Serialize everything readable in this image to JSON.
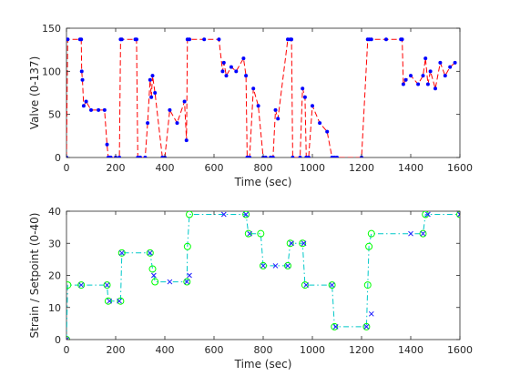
{
  "figure": {
    "background": "#ffffff"
  },
  "chart_data": [
    {
      "type": "line",
      "xlabel": "Time (sec)",
      "ylabel": "Valve (0-137)",
      "xlim": [
        0,
        1600
      ],
      "ylim": [
        0,
        150
      ],
      "xticks": [
        0,
        200,
        400,
        600,
        800,
        1000,
        1200,
        1400,
        1600
      ],
      "yticks": [
        0,
        50,
        100,
        150
      ],
      "grid": false,
      "series": [
        {
          "style": "red-dashed-line-with-blue-dot-markers",
          "line_color": "#ff0000",
          "marker_color": "#0000ff",
          "x": [
            0,
            5,
            55,
            60,
            62,
            65,
            70,
            80,
            100,
            130,
            155,
            165,
            170,
            175,
            180,
            200,
            215,
            220,
            225,
            280,
            285,
            290,
            300,
            320,
            330,
            340,
            345,
            350,
            360,
            390,
            400,
            420,
            450,
            480,
            488,
            492,
            500,
            560,
            620,
            635,
            640,
            650,
            670,
            690,
            720,
            730,
            735,
            740,
            745,
            760,
            780,
            800,
            810,
            830,
            840,
            850,
            860,
            900,
            910,
            915,
            920,
            950,
            960,
            970,
            975,
            985,
            1000,
            1030,
            1060,
            1080,
            1090,
            1100,
            1200,
            1225,
            1232,
            1240,
            1300,
            1360,
            1365,
            1370,
            1380,
            1400,
            1430,
            1450,
            1460,
            1470,
            1480,
            1500,
            1520,
            1540,
            1560,
            1580
          ],
          "y": [
            0,
            137,
            137,
            137,
            100,
            90,
            60,
            65,
            55,
            55,
            55,
            15,
            0,
            0,
            0,
            0,
            0,
            137,
            137,
            137,
            137,
            0,
            0,
            0,
            40,
            90,
            70,
            95,
            75,
            0,
            0,
            55,
            40,
            65,
            20,
            137,
            137,
            137,
            137,
            100,
            110,
            95,
            105,
            100,
            115,
            95,
            0,
            0,
            0,
            80,
            60,
            0,
            0,
            0,
            0,
            55,
            45,
            137,
            137,
            137,
            0,
            0,
            80,
            70,
            0,
            0,
            60,
            40,
            30,
            0,
            0,
            0,
            0,
            137,
            137,
            137,
            137,
            137,
            137,
            85,
            90,
            95,
            85,
            95,
            115,
            85,
            100,
            80,
            110,
            95,
            105,
            110
          ]
        }
      ]
    },
    {
      "type": "line",
      "xlabel": "Time (sec)",
      "ylabel": "Strain / Setpoint (0-40)",
      "xlim": [
        0,
        1600
      ],
      "ylim": [
        0,
        40
      ],
      "xticks": [
        0,
        200,
        400,
        600,
        800,
        1000,
        1200,
        1400,
        1600
      ],
      "yticks": [
        0,
        10,
        20,
        30,
        40
      ],
      "grid": false,
      "series": [
        {
          "style": "cyan-dash-dot-line-with-green-circle-markers",
          "line_color": "#00c8c8",
          "marker_color": "#00ff00",
          "x": [
            0,
            5,
            60,
            165,
            170,
            220,
            225,
            340,
            350,
            360,
            490,
            492,
            500,
            730,
            740,
            790,
            800,
            900,
            910,
            960,
            970,
            1080,
            1090,
            1220,
            1225,
            1230,
            1240,
            1450,
            1460,
            1600
          ],
          "y": [
            0,
            17,
            17,
            17,
            12,
            12,
            27,
            27,
            22,
            18,
            18,
            29,
            39,
            39,
            33,
            33,
            23,
            23,
            30,
            30,
            17,
            17,
            4,
            4,
            17,
            29,
            33,
            33,
            39,
            39
          ]
        },
        {
          "style": "blue-x-markers",
          "marker_color": "#1a1aff",
          "x": [
            0,
            60,
            165,
            175,
            215,
            225,
            340,
            355,
            420,
            490,
            500,
            640,
            730,
            745,
            800,
            850,
            900,
            915,
            965,
            975,
            1080,
            1095,
            1220,
            1240,
            1400,
            1450,
            1470,
            1600
          ],
          "y": [
            0,
            17,
            17,
            12,
            12,
            27,
            27,
            20,
            18,
            18,
            20,
            39,
            39,
            33,
            23,
            23,
            23,
            30,
            30,
            17,
            17,
            4,
            4,
            8,
            33,
            33,
            39,
            39
          ]
        }
      ]
    }
  ]
}
